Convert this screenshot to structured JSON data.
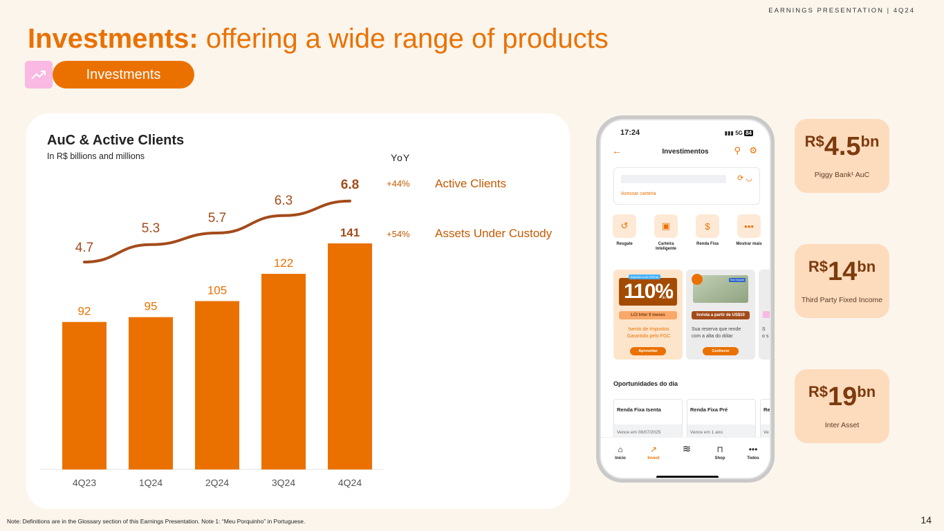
{
  "header": {
    "tag": "EARNINGS PRESENTATION | 4Q24"
  },
  "title": {
    "bold": "Investments:",
    "rest": " offering a wide range of products"
  },
  "section_pill": {
    "label": "Investments",
    "icon": "trending-up-icon"
  },
  "chart_card": {
    "title": "AuC & Active Clients",
    "subtitle": "In R$ billions and millions",
    "yoy_header": "YoY",
    "yoy": [
      {
        "value": "+44%",
        "label": "Active Clients"
      },
      {
        "value": "+54%",
        "label": "Assets Under Custody"
      }
    ]
  },
  "chart_data": {
    "type": "bar+line",
    "categories": [
      "4Q23",
      "1Q24",
      "2Q24",
      "3Q24",
      "4Q24"
    ],
    "series": [
      {
        "name": "Assets Under Custody",
        "type": "bar",
        "values": [
          92,
          95,
          105,
          122,
          141
        ]
      },
      {
        "name": "Active Clients",
        "type": "line",
        "values": [
          4.7,
          5.3,
          5.7,
          6.3,
          6.8
        ]
      }
    ],
    "colors": {
      "bar": "#ea7100",
      "line": "#a34b1a",
      "last_label": "#a34b1a"
    }
  },
  "phone": {
    "time": "17:24",
    "signal": "5G",
    "battery": "84",
    "header_title": "Investimentos",
    "wallet_link": "Acessar carteira",
    "quick_actions": [
      {
        "label": "Resgate",
        "icon": "redeem-icon"
      },
      {
        "label": "Carteira Inteligente",
        "icon": "wallet-icon"
      },
      {
        "label": "Renda Fixa",
        "icon": "fixed-income-icon"
      },
      {
        "label": "Mostrar mais",
        "icon": "more-icon"
      }
    ],
    "promo1": {
      "tag": "Equivale a um CDB de",
      "pct": "110%",
      "cdi": "do CDI",
      "band": "LCI Inter 9 meses",
      "desc": "Isento de Impostos Garantido pelo FGC",
      "button": "Aproveitar"
    },
    "promo2": {
      "tag": "Time Deposit",
      "band": "Invista a partir de US$10",
      "desc": "Sua reserva que rende com a alta do dólar",
      "button": "Conhecer"
    },
    "promo3": {
      "desc": "S o s"
    },
    "opps_title": "Oportunidades do dia",
    "opps": [
      {
        "title": "Renda Fixa Isenta",
        "foot": "Vence em 08/07/2025"
      },
      {
        "title": "Renda Fixa Pré",
        "foot": "Vence em 1 ano"
      },
      {
        "title": "Re",
        "foot": "Ve"
      }
    ],
    "nav": [
      {
        "label": "Início",
        "icon": "home-icon"
      },
      {
        "label": "Invest",
        "icon": "trending-up-icon"
      },
      {
        "label": "",
        "icon": "inter-loop-icon"
      },
      {
        "label": "Shop",
        "icon": "shop-bag-icon"
      },
      {
        "label": "Todos",
        "icon": "more-icon"
      }
    ]
  },
  "stats": [
    {
      "currency": "R$",
      "value": "4.5",
      "unit": "bn",
      "label": "Piggy Bank¹ AuC"
    },
    {
      "currency": "R$",
      "value": "14",
      "unit": "bn",
      "label": "Third Party Fixed Income"
    },
    {
      "currency": "R$",
      "value": "19",
      "unit": "bn",
      "label": "Inter Asset"
    }
  ],
  "footnote": "Note: Definitions are in the Glossary section of this Earnings Presentation. Note 1: “Meu Porquinho” in Portuguese.",
  "page_number": "14"
}
